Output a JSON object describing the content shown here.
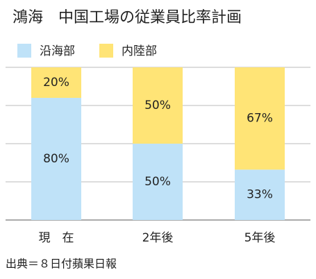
{
  "chart_data": {
    "type": "stacked_bar",
    "title": "鴻海　中国工場の従業員比率計画",
    "categories": [
      "現　在",
      "2年後",
      "5年後"
    ],
    "series": [
      {
        "name": "沿海部",
        "color": "#bfe2f8",
        "values": [
          80,
          50,
          33
        ],
        "value_labels": [
          "80%",
          "50%",
          "33%"
        ]
      },
      {
        "name": "内陸部",
        "color": "#ffe476",
        "values": [
          20,
          50,
          67
        ],
        "value_labels": [
          "20%",
          "50%",
          "67%"
        ]
      }
    ],
    "ylim": [
      0,
      100
    ],
    "yticks": [
      0,
      25,
      50,
      75,
      100
    ],
    "grid": true,
    "source": "出典＝８日付蘋果日報"
  }
}
